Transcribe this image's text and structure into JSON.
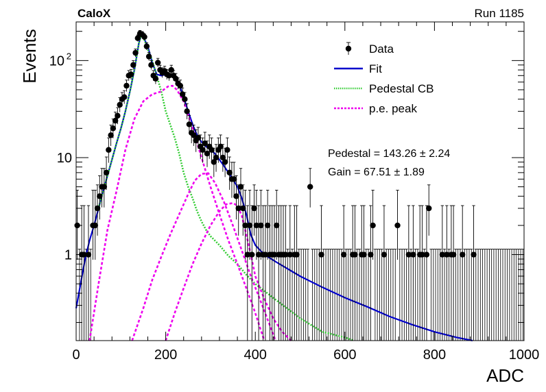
{
  "header": {
    "experiment": "CaloX",
    "run": "Run 1185"
  },
  "stats": {
    "pedestal": "Pedestal = 143.26 ± 2.24",
    "gain": "Gain = 67.51 ± 1.89"
  },
  "chart_data": {
    "type": "scatter",
    "xlabel": "ADC",
    "ylabel": "Events",
    "xlim": [
      0,
      1000
    ],
    "ylim": [
      0.13,
      250
    ],
    "yscale": "log",
    "xticks": [
      0,
      200,
      400,
      600,
      800,
      1000
    ],
    "yticks": [
      {
        "value": 1,
        "label": "1"
      },
      {
        "value": 10,
        "label": "10"
      },
      {
        "value": 100,
        "label": "10",
        "sup": "2"
      }
    ],
    "legend": {
      "position": "top-right",
      "entries": [
        {
          "label": "Data",
          "marker": "point-errorbar",
          "color": "#000000"
        },
        {
          "label": "Fit",
          "marker": "solid-line",
          "color": "#0000cc"
        },
        {
          "label": "Pedestal CB",
          "marker": "dotted-line",
          "color": "#33cc33"
        },
        {
          "label": "p.e. peak",
          "marker": "dashed-line",
          "color": "#ee00ee"
        }
      ]
    },
    "bin_width": 5,
    "data_points": [
      [
        2.5,
        2
      ],
      [
        12.5,
        1
      ],
      [
        17.5,
        1
      ],
      [
        27.5,
        1
      ],
      [
        37.5,
        2
      ],
      [
        42.5,
        2
      ],
      [
        47.5,
        3
      ],
      [
        52.5,
        4
      ],
      [
        57.5,
        5
      ],
      [
        62.5,
        5
      ],
      [
        67.5,
        7
      ],
      [
        72.5,
        12
      ],
      [
        77.5,
        17
      ],
      [
        82.5,
        20
      ],
      [
        87.5,
        24
      ],
      [
        92.5,
        27
      ],
      [
        97.5,
        35
      ],
      [
        102.5,
        40
      ],
      [
        107.5,
        42
      ],
      [
        112.5,
        55
      ],
      [
        117.5,
        70
      ],
      [
        122.5,
        72
      ],
      [
        127.5,
        90
      ],
      [
        132.5,
        120
      ],
      [
        137.5,
        170
      ],
      [
        142.5,
        190
      ],
      [
        147.5,
        185
      ],
      [
        152.5,
        175
      ],
      [
        157.5,
        140
      ],
      [
        162.5,
        110
      ],
      [
        167.5,
        90
      ],
      [
        172.5,
        70
      ],
      [
        177.5,
        65
      ],
      [
        182.5,
        95
      ],
      [
        187.5,
        80
      ],
      [
        192.5,
        75
      ],
      [
        197.5,
        78
      ],
      [
        202.5,
        72
      ],
      [
        207.5,
        70
      ],
      [
        212.5,
        80
      ],
      [
        217.5,
        70
      ],
      [
        222.5,
        65
      ],
      [
        227.5,
        58
      ],
      [
        232.5,
        55
      ],
      [
        237.5,
        45
      ],
      [
        242.5,
        40
      ],
      [
        247.5,
        30
      ],
      [
        252.5,
        22
      ],
      [
        257.5,
        18
      ],
      [
        262.5,
        17
      ],
      [
        267.5,
        15
      ],
      [
        272.5,
        16
      ],
      [
        277.5,
        13
      ],
      [
        282.5,
        12
      ],
      [
        287.5,
        14
      ],
      [
        292.5,
        11
      ],
      [
        297.5,
        13
      ],
      [
        302.5,
        12
      ],
      [
        307.5,
        9
      ],
      [
        312.5,
        10
      ],
      [
        317.5,
        12
      ],
      [
        322.5,
        13
      ],
      [
        327.5,
        10
      ],
      [
        332.5,
        9
      ],
      [
        337.5,
        12
      ],
      [
        342.5,
        7
      ],
      [
        347.5,
        6
      ],
      [
        352.5,
        6
      ],
      [
        357.5,
        4
      ],
      [
        362.5,
        3
      ],
      [
        367.5,
        5
      ],
      [
        372.5,
        3
      ],
      [
        377.5,
        2
      ],
      [
        382.5,
        1
      ],
      [
        387.5,
        2
      ],
      [
        392.5,
        1
      ],
      [
        397.5,
        3
      ],
      [
        402.5,
        2
      ],
      [
        407.5,
        1
      ],
      [
        412.5,
        2
      ],
      [
        417.5,
        1
      ],
      [
        422.5,
        1
      ],
      [
        427.5,
        2
      ],
      [
        432.5,
        1
      ],
      [
        437.5,
        1
      ],
      [
        442.5,
        1
      ],
      [
        447.5,
        2
      ],
      [
        452.5,
        1
      ],
      [
        457.5,
        1
      ],
      [
        462.5,
        1
      ],
      [
        467.5,
        1
      ],
      [
        477.5,
        1
      ],
      [
        487.5,
        1
      ],
      [
        492.5,
        1
      ],
      [
        522.5,
        5
      ],
      [
        547.5,
        1
      ],
      [
        597.5,
        1
      ],
      [
        617.5,
        1
      ],
      [
        622.5,
        1
      ],
      [
        637.5,
        1
      ],
      [
        642.5,
        1
      ],
      [
        657.5,
        1
      ],
      [
        662.5,
        2
      ],
      [
        687.5,
        1
      ],
      [
        717.5,
        2
      ],
      [
        742.5,
        1
      ],
      [
        752.5,
        1
      ],
      [
        767.5,
        1
      ],
      [
        772.5,
        1
      ],
      [
        782.5,
        1
      ],
      [
        787.5,
        3
      ],
      [
        817.5,
        1
      ],
      [
        827.5,
        1
      ],
      [
        837.5,
        1
      ],
      [
        842.5,
        1
      ],
      [
        862.5,
        1
      ],
      [
        887.5,
        1
      ]
    ],
    "series": [
      {
        "name": "Fit",
        "color": "#0000cc",
        "style": "solid",
        "points": [
          [
            0,
            0.28
          ],
          [
            10,
            0.5
          ],
          [
            20,
            0.9
          ],
          [
            30,
            1.4
          ],
          [
            40,
            2
          ],
          [
            50,
            3
          ],
          [
            60,
            4.5
          ],
          [
            70,
            6.5
          ],
          [
            80,
            9.5
          ],
          [
            90,
            14
          ],
          [
            100,
            20
          ],
          [
            110,
            30
          ],
          [
            120,
            48
          ],
          [
            130,
            80
          ],
          [
            140,
            150
          ],
          [
            145,
            182
          ],
          [
            150,
            175
          ],
          [
            160,
            140
          ],
          [
            170,
            95
          ],
          [
            180,
            72
          ],
          [
            190,
            70
          ],
          [
            200,
            72
          ],
          [
            210,
            72
          ],
          [
            220,
            66
          ],
          [
            230,
            57
          ],
          [
            240,
            42
          ],
          [
            250,
            30
          ],
          [
            260,
            22
          ],
          [
            270,
            17
          ],
          [
            280,
            14.5
          ],
          [
            290,
            13
          ],
          [
            300,
            12
          ],
          [
            310,
            11
          ],
          [
            320,
            9.5
          ],
          [
            330,
            8.2
          ],
          [
            340,
            7
          ],
          [
            350,
            6
          ],
          [
            360,
            5
          ],
          [
            370,
            3.8
          ],
          [
            380,
            2.6
          ],
          [
            390,
            1.6
          ],
          [
            400,
            1.25
          ],
          [
            420,
            1.0
          ],
          [
            450,
            0.82
          ],
          [
            500,
            0.6
          ],
          [
            550,
            0.46
          ],
          [
            600,
            0.36
          ],
          [
            650,
            0.29
          ],
          [
            700,
            0.23
          ],
          [
            750,
            0.19
          ],
          [
            800,
            0.16
          ],
          [
            850,
            0.14
          ],
          [
            885,
            0.13
          ]
        ]
      },
      {
        "name": "Pedestal CB",
        "color": "#33cc33",
        "style": "dotted",
        "points": [
          [
            50,
            3
          ],
          [
            60,
            4.5
          ],
          [
            70,
            6.5
          ],
          [
            80,
            9.5
          ],
          [
            90,
            14
          ],
          [
            100,
            20
          ],
          [
            110,
            30
          ],
          [
            120,
            48
          ],
          [
            130,
            80
          ],
          [
            140,
            150
          ],
          [
            145,
            182
          ],
          [
            150,
            175
          ],
          [
            160,
            130
          ],
          [
            170,
            100
          ],
          [
            180,
            70
          ],
          [
            190,
            48
          ],
          [
            200,
            30
          ],
          [
            210,
            22
          ],
          [
            220,
            16
          ],
          [
            230,
            11
          ],
          [
            240,
            7
          ],
          [
            250,
            5
          ],
          [
            260,
            3.8
          ],
          [
            270,
            2.8
          ],
          [
            280,
            2.2
          ],
          [
            290,
            1.8
          ],
          [
            300,
            1.55
          ],
          [
            320,
            1.25
          ],
          [
            340,
            0.97
          ],
          [
            360,
            0.8
          ],
          [
            380,
            0.62
          ],
          [
            400,
            0.5
          ],
          [
            450,
            0.33
          ],
          [
            500,
            0.22
          ],
          [
            550,
            0.16
          ],
          [
            600,
            0.14
          ],
          [
            620,
            0.13
          ]
        ]
      },
      {
        "name": "p.e. peak 1",
        "color": "#ee00ee",
        "style": "dashed",
        "points": [
          [
            30,
            0.13
          ],
          [
            50,
            0.5
          ],
          [
            70,
            1.8
          ],
          [
            90,
            4.5
          ],
          [
            110,
            12
          ],
          [
            130,
            25
          ],
          [
            150,
            38
          ],
          [
            170,
            45
          ],
          [
            190,
            48
          ],
          [
            205,
            54
          ],
          [
            215,
            55
          ],
          [
            225,
            50
          ],
          [
            240,
            38
          ],
          [
            260,
            20
          ],
          [
            280,
            10
          ],
          [
            300,
            5
          ],
          [
            320,
            2.6
          ],
          [
            340,
            1.4
          ],
          [
            360,
            0.8
          ],
          [
            380,
            0.45
          ],
          [
            400,
            0.25
          ],
          [
            410,
            0.18
          ],
          [
            420,
            0.13
          ]
        ]
      },
      {
        "name": "p.e. peak 2",
        "color": "#ee00ee",
        "style": "dashed",
        "points": [
          [
            125,
            0.13
          ],
          [
            150,
            0.28
          ],
          [
            170,
            0.55
          ],
          [
            190,
            0.95
          ],
          [
            210,
            1.6
          ],
          [
            230,
            2.6
          ],
          [
            250,
            4.2
          ],
          [
            265,
            5.8
          ],
          [
            280,
            6.8
          ],
          [
            295,
            6.9
          ],
          [
            310,
            5.5
          ],
          [
            330,
            3.5
          ],
          [
            350,
            2
          ],
          [
            370,
            1.1
          ],
          [
            390,
            0.6
          ],
          [
            410,
            0.35
          ],
          [
            430,
            0.2
          ],
          [
            445,
            0.13
          ]
        ]
      },
      {
        "name": "p.e. peak 3",
        "color": "#ee00ee",
        "style": "dashed",
        "points": [
          [
            200,
            0.13
          ],
          [
            220,
            0.25
          ],
          [
            240,
            0.45
          ],
          [
            260,
            0.8
          ],
          [
            280,
            1.3
          ],
          [
            300,
            2
          ],
          [
            320,
            2.8
          ],
          [
            335,
            3.3
          ],
          [
            350,
            3.4
          ],
          [
            360,
            3.2
          ],
          [
            370,
            2.5
          ],
          [
            380,
            1.6
          ],
          [
            390,
            1
          ],
          [
            400,
            0.6
          ],
          [
            420,
            0.35
          ],
          [
            440,
            0.22
          ],
          [
            460,
            0.16
          ],
          [
            480,
            0.13
          ]
        ]
      }
    ]
  }
}
